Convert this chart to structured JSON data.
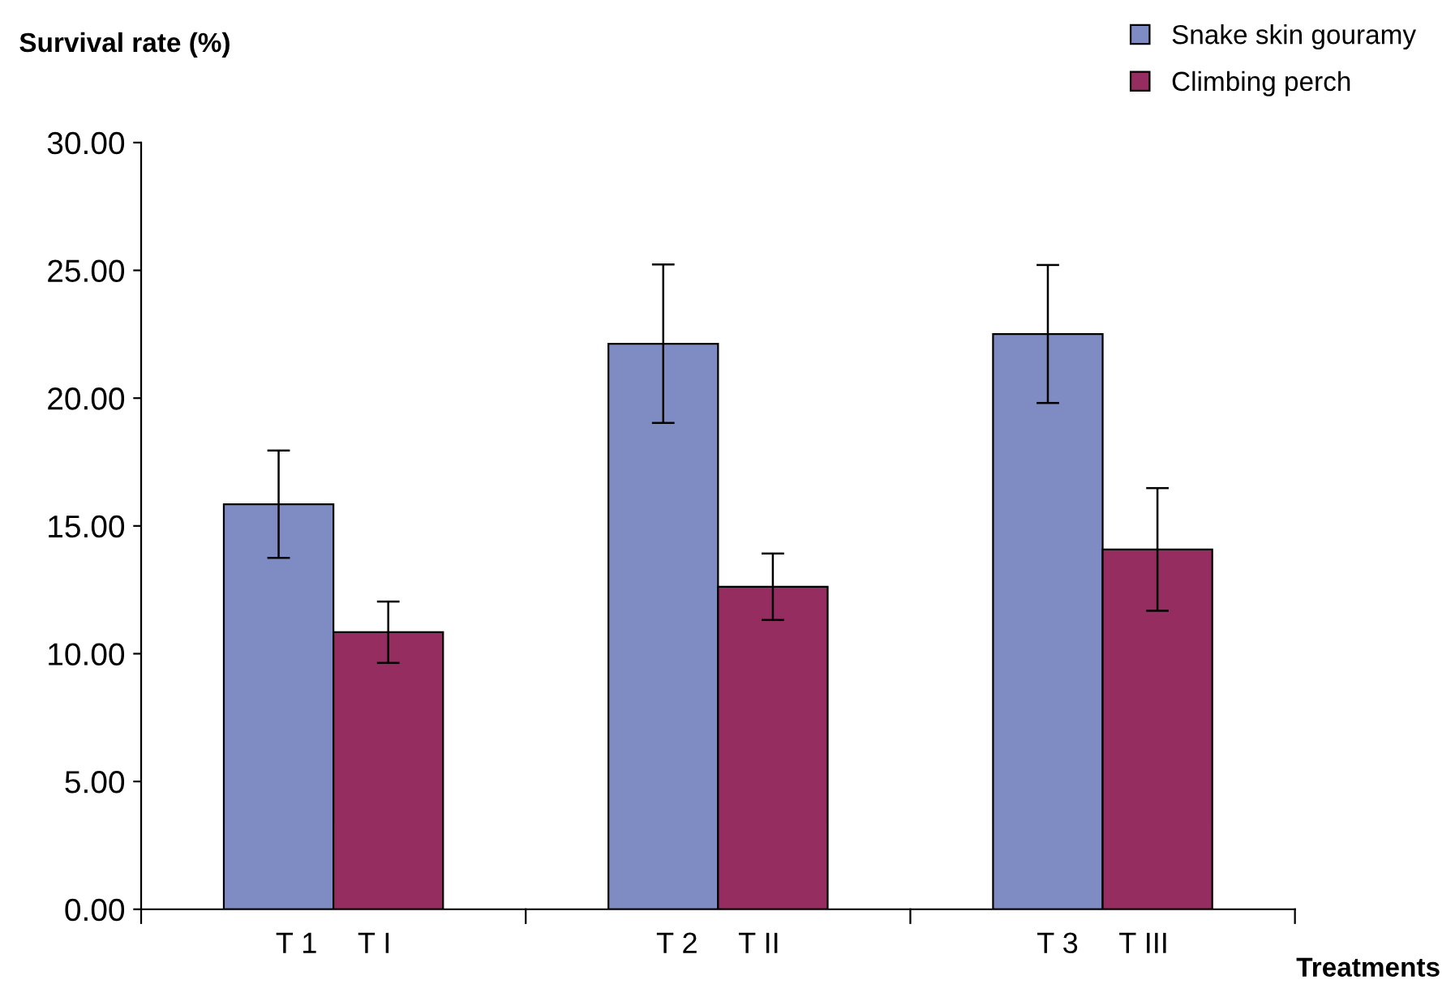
{
  "chart_data": {
    "type": "bar",
    "ylabel": "Survival rate (%)",
    "xlabel": "Treatments",
    "categories": [
      "T 1     T I",
      "T 2     T II",
      "T 3     T III"
    ],
    "series": [
      {
        "name": "Snake skin gouramy",
        "color": "#7f8cc4",
        "values": [
          15.85,
          22.13,
          22.51
        ],
        "errors": [
          2.1,
          3.1,
          2.7
        ]
      },
      {
        "name": "Climbing perch",
        "color": "#962d60",
        "values": [
          10.84,
          12.62,
          14.08
        ],
        "errors": [
          1.2,
          1.3,
          2.4
        ]
      }
    ],
    "ylim": [
      0,
      30
    ],
    "yticks": [
      {
        "value": 0,
        "label": "0.00"
      },
      {
        "value": 5,
        "label": "5.00"
      },
      {
        "value": 10,
        "label": "10.00"
      },
      {
        "value": 15,
        "label": "15.00"
      },
      {
        "value": 20,
        "label": "20.00"
      },
      {
        "value": 25,
        "label": "25.00"
      },
      {
        "value": 30,
        "label": "30.00"
      }
    ],
    "grid": false,
    "legend": "top right"
  }
}
